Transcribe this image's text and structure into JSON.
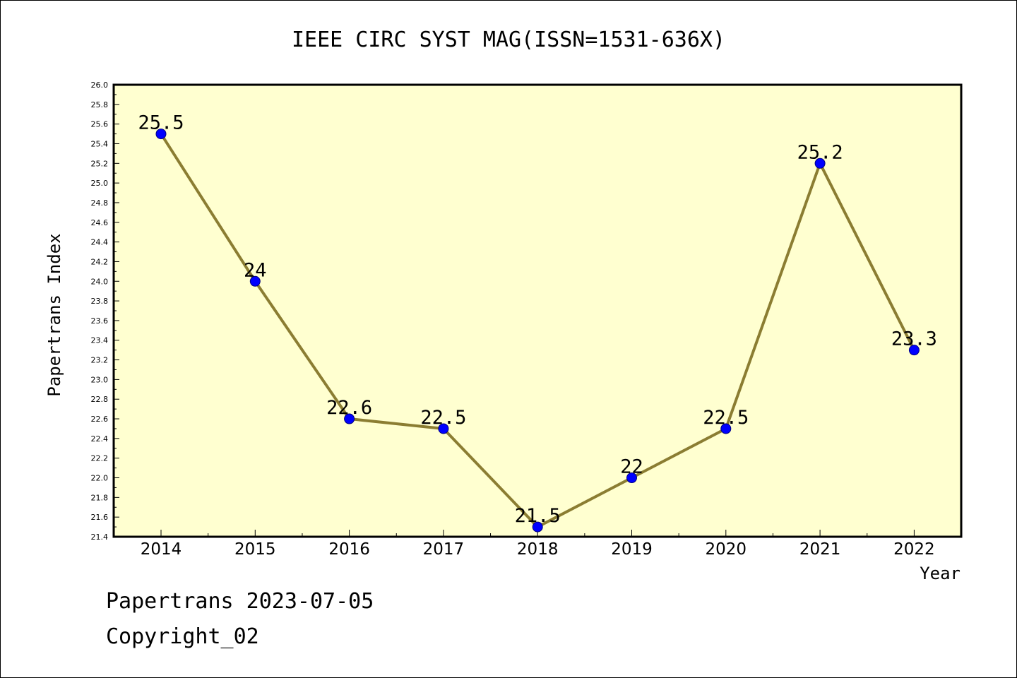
{
  "chart_data": {
    "type": "line",
    "title": "IEEE CIRC SYST MAG(ISSN=1531-636X)",
    "xlabel": "Year",
    "ylabel": "Papertrans Index",
    "categories": [
      "2014",
      "2015",
      "2016",
      "2017",
      "2018",
      "2019",
      "2020",
      "2021",
      "2022"
    ],
    "series": [
      {
        "values": [
          25.5,
          24,
          22.6,
          22.5,
          21.5,
          22,
          22.5,
          25.2,
          23.3
        ],
        "labels": [
          "25.5",
          "24",
          "22.6",
          "22.5",
          "21.5",
          "22",
          "22.5",
          "25.2",
          "23.3"
        ]
      }
    ],
    "ylim": [
      21.4,
      26.0
    ],
    "ytick_step": 0.2,
    "grid": false,
    "colors": {
      "plot_background": "#ffffd0",
      "line": "#8b7d32",
      "marker": "#0000ff",
      "marker_edge": "#000080"
    }
  },
  "footer": {
    "line1": "Papertrans 2023-07-05",
    "line2": "Copyright_02"
  }
}
